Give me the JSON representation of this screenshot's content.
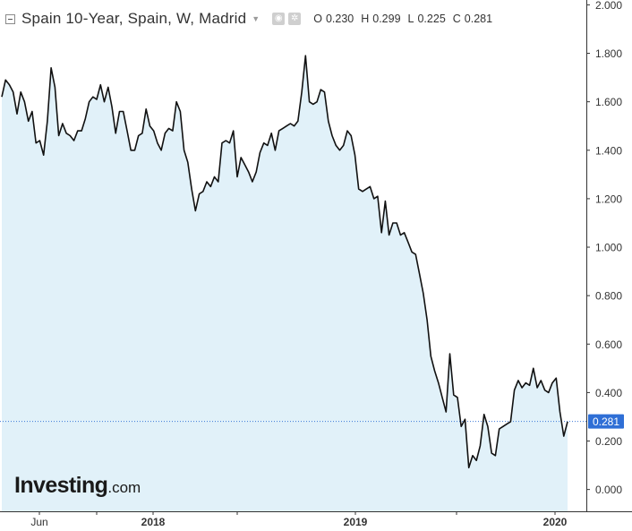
{
  "header": {
    "title": "Spain 10-Year, Spain, W, Madrid",
    "dropdown_icon": "caret-down-icon",
    "eye_icon": "eye-icon",
    "settings_icon": "gear-icon",
    "ohlc": [
      {
        "key": "O",
        "value": "0.230"
      },
      {
        "key": "H",
        "value": "0.299"
      },
      {
        "key": "L",
        "value": "0.225"
      },
      {
        "key": "C",
        "value": "0.281"
      }
    ]
  },
  "logo": {
    "main": "Investing",
    "domain": ".com"
  },
  "colors": {
    "line": "#111111",
    "fill": "#e1f1f9",
    "last_price_label": "#2f6fd6",
    "last_price_line": "#3a78d8",
    "axis": "#333333"
  },
  "chart_data": {
    "type": "area",
    "title": "Spain 10-Year, Spain, W, Madrid",
    "xlabel": "",
    "ylabel": "",
    "ylim": [
      -0.09,
      2.02
    ],
    "y_ticks": [
      "2.000",
      "1.800",
      "1.600",
      "1.400",
      "1.200",
      "1.000",
      "0.800",
      "0.600",
      "0.400",
      "0.200",
      "0.000"
    ],
    "x_ticks": [
      "Jun",
      "2018",
      "2019",
      "2020"
    ],
    "last_price": "0.281",
    "grid": false,
    "series": [
      {
        "values": [
          1.62,
          1.69,
          1.67,
          1.64,
          1.55,
          1.64,
          1.6,
          1.52,
          1.56,
          1.43,
          1.44,
          1.38,
          1.52,
          1.74,
          1.66,
          1.46,
          1.51,
          1.47,
          1.46,
          1.44,
          1.48,
          1.48,
          1.53,
          1.6,
          1.62,
          1.61,
          1.67,
          1.6,
          1.66,
          1.58,
          1.47,
          1.56,
          1.56,
          1.48,
          1.4,
          1.4,
          1.46,
          1.47,
          1.57,
          1.5,
          1.48,
          1.43,
          1.4,
          1.47,
          1.49,
          1.48,
          1.6,
          1.56,
          1.4,
          1.35,
          1.24,
          1.15,
          1.22,
          1.23,
          1.27,
          1.25,
          1.29,
          1.27,
          1.43,
          1.44,
          1.43,
          1.48,
          1.29,
          1.37,
          1.34,
          1.31,
          1.27,
          1.31,
          1.39,
          1.43,
          1.42,
          1.47,
          1.4,
          1.48,
          1.49,
          1.5,
          1.51,
          1.5,
          1.52,
          1.64,
          1.79,
          1.6,
          1.59,
          1.6,
          1.65,
          1.64,
          1.52,
          1.46,
          1.42,
          1.4,
          1.42,
          1.48,
          1.46,
          1.38,
          1.24,
          1.23,
          1.24,
          1.25,
          1.2,
          1.21,
          1.06,
          1.19,
          1.05,
          1.1,
          1.1,
          1.05,
          1.06,
          1.02,
          0.98,
          0.97,
          0.89,
          0.81,
          0.7,
          0.55,
          0.49,
          0.44,
          0.38,
          0.32,
          0.56,
          0.39,
          0.38,
          0.26,
          0.29,
          0.09,
          0.14,
          0.12,
          0.18,
          0.31,
          0.26,
          0.15,
          0.14,
          0.25,
          0.26,
          0.27,
          0.28,
          0.41,
          0.45,
          0.42,
          0.44,
          0.43,
          0.5,
          0.42,
          0.45,
          0.41,
          0.4,
          0.44,
          0.46,
          0.32,
          0.22,
          0.28
        ]
      }
    ]
  }
}
